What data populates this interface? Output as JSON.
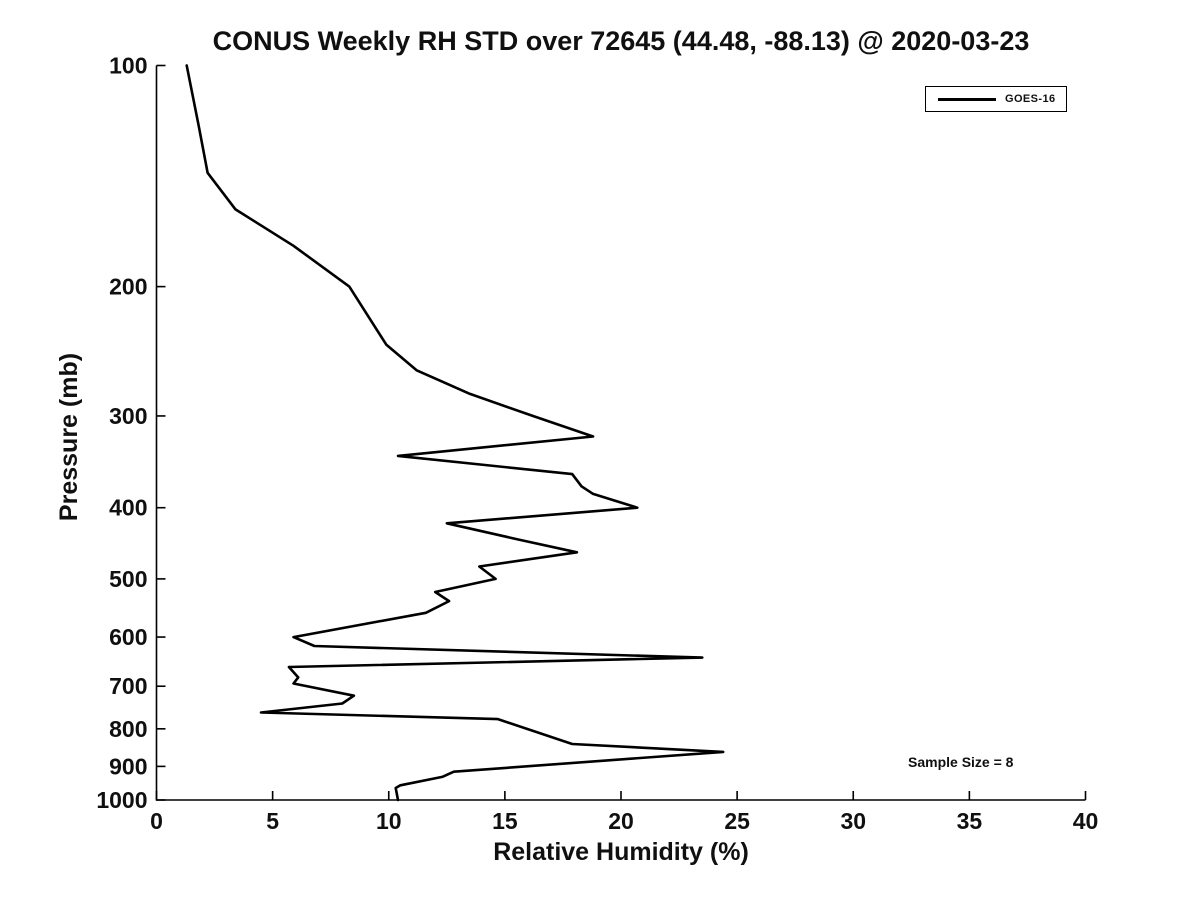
{
  "chart_data": {
    "type": "line",
    "title": "CONUS Weekly RH STD over 72645 (44.48, -88.13) @ 2020-03-23",
    "xlabel": "Relative Humidity (%)",
    "ylabel": "Pressure (mb)",
    "xlim": [
      0,
      40
    ],
    "ylim": [
      100,
      1000
    ],
    "y_scale": "log",
    "y_inverted": true,
    "grid": false,
    "x_ticks": [
      0,
      5,
      10,
      15,
      20,
      25,
      30,
      35,
      40
    ],
    "y_ticks": [
      100,
      200,
      300,
      400,
      500,
      600,
      700,
      800,
      900,
      1000
    ],
    "legend_position": "top-right",
    "series": [
      {
        "name": "GOES-16",
        "color": "#000000",
        "points_rh_pressure": [
          [
            1.3,
            100
          ],
          [
            1.8,
            120
          ],
          [
            2.2,
            140
          ],
          [
            3.4,
            157
          ],
          [
            5.9,
            176
          ],
          [
            8.3,
            200
          ],
          [
            9.9,
            240
          ],
          [
            11.2,
            260
          ],
          [
            13.5,
            280
          ],
          [
            16.2,
            300
          ],
          [
            18.8,
            320
          ],
          [
            10.4,
            340
          ],
          [
            17.9,
            360
          ],
          [
            18.3,
            374
          ],
          [
            18.8,
            383
          ],
          [
            20.7,
            400
          ],
          [
            12.5,
            420
          ],
          [
            15.6,
            442
          ],
          [
            18.1,
            460
          ],
          [
            13.9,
            481
          ],
          [
            14.6,
            500
          ],
          [
            12.0,
            521
          ],
          [
            12.6,
            536
          ],
          [
            11.6,
            556
          ],
          [
            5.9,
            600
          ],
          [
            6.8,
            617
          ],
          [
            23.5,
            640
          ],
          [
            5.7,
            659
          ],
          [
            6.1,
            681
          ],
          [
            5.9,
            694
          ],
          [
            8.5,
            721
          ],
          [
            8.0,
            739
          ],
          [
            4.5,
            760
          ],
          [
            14.7,
            776
          ],
          [
            17.9,
            839
          ],
          [
            24.4,
            860
          ],
          [
            12.8,
            915
          ],
          [
            12.3,
            930
          ],
          [
            10.5,
            955
          ],
          [
            10.3,
            963
          ],
          [
            10.4,
            1000
          ]
        ]
      }
    ]
  },
  "annotations": {
    "sample_size": "Sample Size = 8"
  },
  "colors": {
    "line": "#000000",
    "background": "#ffffff",
    "text": "#101010"
  }
}
